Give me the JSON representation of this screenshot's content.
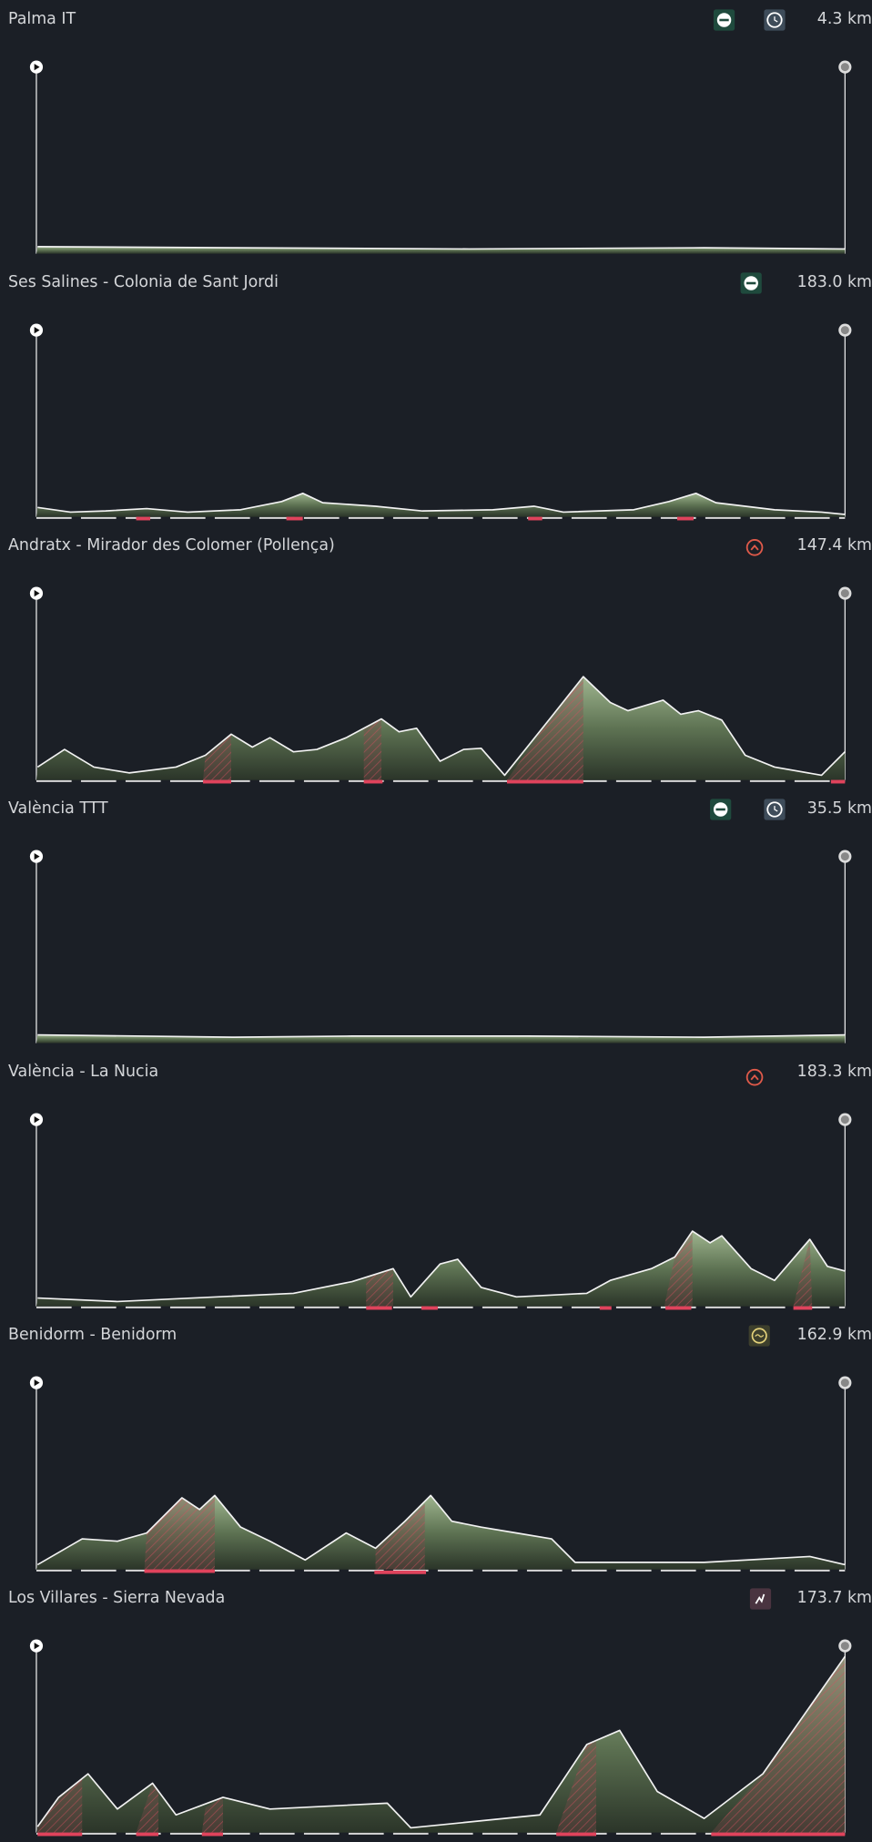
{
  "stages": [
    {
      "name": "Palma IT",
      "distance": "4.3 km"
    },
    {
      "name": "Ses Salines - Colonia de Sant Jordi",
      "distance": "183.0 km"
    },
    {
      "name": "Andratx - Mirador des Colomer (Pollença)",
      "distance": "147.4 km"
    },
    {
      "name": "València TTT",
      "distance": "35.5 km"
    },
    {
      "name": "València - La Nucia",
      "distance": "183.3 km"
    },
    {
      "name": "Benidorm - Benidorm",
      "distance": "162.9 km"
    },
    {
      "name": "Los Villares - Sierra Nevada",
      "distance": "173.7 km"
    }
  ]
}
